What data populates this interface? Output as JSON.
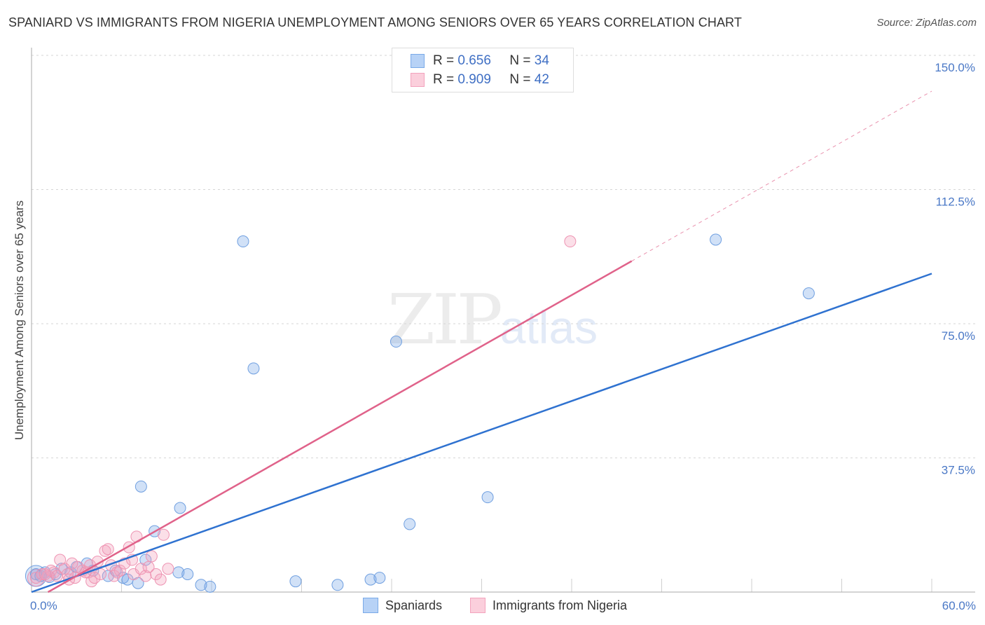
{
  "title": "SPANIARD VS IMMIGRANTS FROM NIGERIA UNEMPLOYMENT AMONG SENIORS OVER 65 YEARS CORRELATION CHART",
  "source": "Source: ZipAtlas.com",
  "watermark": {
    "zip": "ZIP",
    "atlas": "atlas"
  },
  "legend": {
    "r_label": "R =",
    "n_label": "N =",
    "series": [
      {
        "r": "0.656",
        "n": "34"
      },
      {
        "r": "0.909",
        "n": "42"
      }
    ]
  },
  "bottom_legend": [
    "Spaniards",
    "Immigrants from Nigeria"
  ],
  "chart_data": {
    "type": "scatter",
    "title": "SPANIARD VS IMMIGRANTS FROM NIGERIA UNEMPLOYMENT AMONG SENIORS OVER 65 YEARS CORRELATION CHART",
    "xlabel": "",
    "ylabel": "Unemployment Among Seniors over 65 years",
    "xlim": [
      0,
      60
    ],
    "ylim": [
      0,
      150
    ],
    "x_tick_labels": [
      {
        "value": 0,
        "label": "0.0%"
      },
      {
        "value": 60,
        "label": "60.0%"
      }
    ],
    "y_tick_labels": [
      {
        "value": 37.5,
        "label": "37.5%"
      },
      {
        "value": 75,
        "label": "75.0%"
      },
      {
        "value": 112.5,
        "label": "112.5%"
      },
      {
        "value": 150,
        "label": "150.0%"
      }
    ],
    "colors": {
      "Spaniards": "#7aaae8",
      "Immigrants from Nigeria": "#f3a3bd",
      "trend_blue": "#2f72d0",
      "trend_pink": "#e0628a"
    },
    "series": [
      {
        "name": "Spaniards",
        "points": [
          [
            0.3,
            5.0
          ],
          [
            0.6,
            4.5
          ],
          [
            0.9,
            5.5
          ],
          [
            1.2,
            4.2
          ],
          [
            1.6,
            5.0
          ],
          [
            2.0,
            6.5
          ],
          [
            2.6,
            5.5
          ],
          [
            3.0,
            7.0
          ],
          [
            3.7,
            8.0
          ],
          [
            4.1,
            6.0
          ],
          [
            5.1,
            4.5
          ],
          [
            5.6,
            6.0
          ],
          [
            6.1,
            4.0
          ],
          [
            6.4,
            3.5
          ],
          [
            7.1,
            2.5
          ],
          [
            7.6,
            9.0
          ],
          [
            7.3,
            29.5
          ],
          [
            8.2,
            17.0
          ],
          [
            9.9,
            23.5
          ],
          [
            9.8,
            5.5
          ],
          [
            10.4,
            5.0
          ],
          [
            11.3,
            2.0
          ],
          [
            11.9,
            1.5
          ],
          [
            14.1,
            98.0
          ],
          [
            14.8,
            62.5
          ],
          [
            17.6,
            3.0
          ],
          [
            20.4,
            2.0
          ],
          [
            22.6,
            3.5
          ],
          [
            23.2,
            4.0
          ],
          [
            24.3,
            70.0
          ],
          [
            25.2,
            19.0
          ],
          [
            30.4,
            26.5
          ],
          [
            45.6,
            98.5
          ],
          [
            51.8,
            83.5
          ]
        ]
      },
      {
        "name": "Immigrants from Nigeria",
        "points": [
          [
            0.3,
            4.0
          ],
          [
            0.7,
            5.0
          ],
          [
            1.1,
            4.5
          ],
          [
            1.5,
            5.5
          ],
          [
            1.9,
            9.0
          ],
          [
            2.2,
            6.5
          ],
          [
            2.5,
            3.5
          ],
          [
            2.9,
            4.0
          ],
          [
            3.1,
            7.0
          ],
          [
            3.4,
            6.0
          ],
          [
            3.8,
            5.5
          ],
          [
            4.0,
            3.0
          ],
          [
            4.4,
            8.5
          ],
          [
            4.6,
            5.0
          ],
          [
            4.9,
            11.5
          ],
          [
            5.1,
            12.0
          ],
          [
            5.3,
            7.5
          ],
          [
            5.5,
            4.5
          ],
          [
            5.9,
            6.0
          ],
          [
            6.2,
            8.0
          ],
          [
            6.5,
            12.5
          ],
          [
            6.8,
            5.0
          ],
          [
            7.0,
            15.5
          ],
          [
            7.3,
            6.5
          ],
          [
            7.6,
            4.5
          ],
          [
            8.0,
            10.0
          ],
          [
            8.3,
            5.0
          ],
          [
            8.6,
            3.5
          ],
          [
            8.8,
            16.0
          ],
          [
            9.1,
            6.5
          ],
          [
            2.4,
            5.0
          ],
          [
            3.6,
            5.5
          ],
          [
            1.3,
            6.0
          ],
          [
            0.9,
            5.0
          ],
          [
            4.2,
            4.0
          ],
          [
            5.7,
            5.5
          ],
          [
            6.7,
            9.0
          ],
          [
            7.8,
            7.0
          ],
          [
            2.7,
            8.0
          ],
          [
            3.9,
            7.5
          ],
          [
            1.7,
            4.5
          ],
          [
            35.9,
            98.0
          ]
        ]
      }
    ],
    "trend_lines": [
      {
        "series": "Spaniards",
        "x": [
          0,
          60
        ],
        "y": [
          0,
          89.0
        ],
        "style": "solid"
      },
      {
        "series": "Immigrants from Nigeria",
        "x": [
          1.1,
          40.0
        ],
        "y": [
          0,
          92.5
        ],
        "style": "solid"
      },
      {
        "series": "Immigrants from Nigeria",
        "x": [
          40.0,
          60.0
        ],
        "y": [
          92.5,
          140.0
        ],
        "style": "dashed"
      }
    ]
  }
}
